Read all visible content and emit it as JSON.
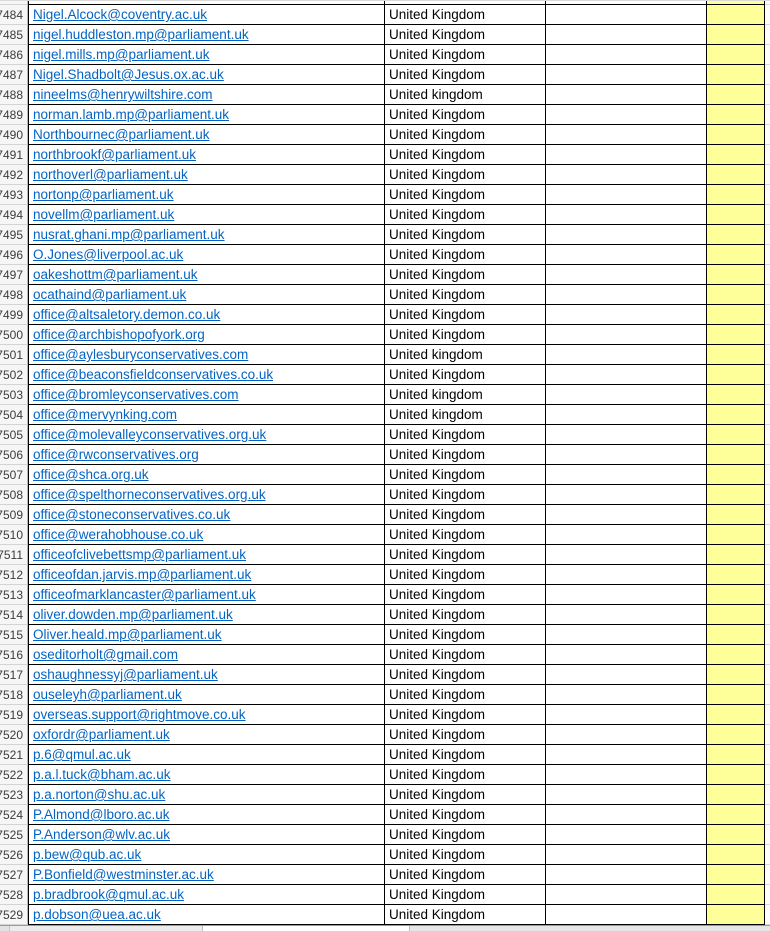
{
  "colors": {
    "hyperlink_blue": "#0563C1",
    "highlight_yellow": "#FFFF99",
    "cell_border_black": "#000000"
  },
  "spreadsheet": {
    "first_row_number": "7484",
    "last_row_number": "7529",
    "rows": [
      {
        "num": "7484",
        "email": "Nigel.Alcock@coventry.ac.uk",
        "country": "United Kingdom"
      },
      {
        "num": "7485",
        "email": "nigel.huddleston.mp@parliament.uk",
        "country": "United Kingdom"
      },
      {
        "num": "7486",
        "email": "nigel.mills.mp@parliament.uk",
        "country": "United Kingdom"
      },
      {
        "num": "7487",
        "email": "Nigel.Shadbolt@Jesus.ox.ac.uk",
        "country": "United Kingdom"
      },
      {
        "num": "7488",
        "email": "nineelms@henrywiltshire.com",
        "country": "United kingdom"
      },
      {
        "num": "7489",
        "email": "norman.lamb.mp@parliament.uk",
        "country": "United Kingdom"
      },
      {
        "num": "7490",
        "email": "Northbournec@parliament.uk",
        "country": "United Kingdom"
      },
      {
        "num": "7491",
        "email": "northbrookf@parliament.uk",
        "country": "United Kingdom"
      },
      {
        "num": "7492",
        "email": "northoverl@parliament.uk",
        "country": "United Kingdom"
      },
      {
        "num": "7493",
        "email": "nortonp@parliament.uk",
        "country": "United Kingdom"
      },
      {
        "num": "7494",
        "email": "novellm@parliament.uk",
        "country": "United Kingdom"
      },
      {
        "num": "7495",
        "email": "nusrat.ghani.mp@parliament.uk",
        "country": "United Kingdom"
      },
      {
        "num": "7496",
        "email": "O.Jones@liverpool.ac.uk",
        "country": "United Kingdom"
      },
      {
        "num": "7497",
        "email": "oakeshottm@parliament.uk",
        "country": "United Kingdom"
      },
      {
        "num": "7498",
        "email": "ocathaind@parliament.uk",
        "country": "United Kingdom"
      },
      {
        "num": "7499",
        "email": "office@altsaletory.demon.co.uk",
        "country": "United Kingdom"
      },
      {
        "num": "7500",
        "email": "office@archbishopofyork.org",
        "country": "United Kingdom"
      },
      {
        "num": "7501",
        "email": "office@aylesburyconservatives.com",
        "country": "United kingdom"
      },
      {
        "num": "7502",
        "email": "office@beaconsfieldconservatives.co.uk",
        "country": "United Kingdom"
      },
      {
        "num": "7503",
        "email": "office@bromleyconservatives.com",
        "country": "United kingdom"
      },
      {
        "num": "7504",
        "email": "office@mervynking.com",
        "country": "United kingdom"
      },
      {
        "num": "7505",
        "email": "office@molevalleyconservatives.org.uk",
        "country": "United Kingdom"
      },
      {
        "num": "7506",
        "email": "office@rwconservatives.org",
        "country": "United Kingdom"
      },
      {
        "num": "7507",
        "email": "office@shca.org.uk",
        "country": "United Kingdom"
      },
      {
        "num": "7508",
        "email": "office@spelthorneconservatives.org.uk",
        "country": "United Kingdom"
      },
      {
        "num": "7509",
        "email": "office@stoneconservatives.co.uk",
        "country": "United Kingdom"
      },
      {
        "num": "7510",
        "email": "office@werahobhouse.co.uk",
        "country": "United Kingdom"
      },
      {
        "num": "7511",
        "email": "officeofclivebettsmp@parliament.uk",
        "country": "United Kingdom"
      },
      {
        "num": "7512",
        "email": "officeofdan.jarvis.mp@parliament.uk",
        "country": "United Kingdom"
      },
      {
        "num": "7513",
        "email": "officeofmarklancaster@parliament.uk",
        "country": "United Kingdom"
      },
      {
        "num": "7514",
        "email": "oliver.dowden.mp@parliament.uk",
        "country": "United Kingdom"
      },
      {
        "num": "7515",
        "email": "Oliver.heald.mp@parliament.uk",
        "country": "United Kingdom"
      },
      {
        "num": "7516",
        "email": "oseditorholt@gmail.com",
        "country": "United Kingdom"
      },
      {
        "num": "7517",
        "email": "oshaughnessyj@parliament.uk",
        "country": "United Kingdom"
      },
      {
        "num": "7518",
        "email": "ouseleyh@parliament.uk",
        "country": "United Kingdom"
      },
      {
        "num": "7519",
        "email": "overseas.support@rightmove.co.uk",
        "country": "United Kingdom"
      },
      {
        "num": "7520",
        "email": "oxfordr@parliament.uk",
        "country": "United Kingdom"
      },
      {
        "num": "7521",
        "email": "p.6@qmul.ac.uk",
        "country": "United Kingdom"
      },
      {
        "num": "7522",
        "email": "p.a.l.tuck@bham.ac.uk",
        "country": "United Kingdom"
      },
      {
        "num": "7523",
        "email": "p.a.norton@shu.ac.uk",
        "country": "United Kingdom"
      },
      {
        "num": "7524",
        "email": "P.Almond@lboro.ac.uk",
        "country": "United Kingdom"
      },
      {
        "num": "7525",
        "email": "P.Anderson@wlv.ac.uk",
        "country": "United Kingdom"
      },
      {
        "num": "7526",
        "email": "p.bew@qub.ac.uk",
        "country": "United Kingdom"
      },
      {
        "num": "7527",
        "email": "P.Bonfield@westminster.ac.uk",
        "country": "United Kingdom"
      },
      {
        "num": "7528",
        "email": "p.bradbrook@qmul.ac.uk",
        "country": "United Kingdom"
      },
      {
        "num": "7529",
        "email": "p.dobson@uea.ac.uk",
        "country": "United Kingdom"
      }
    ]
  }
}
